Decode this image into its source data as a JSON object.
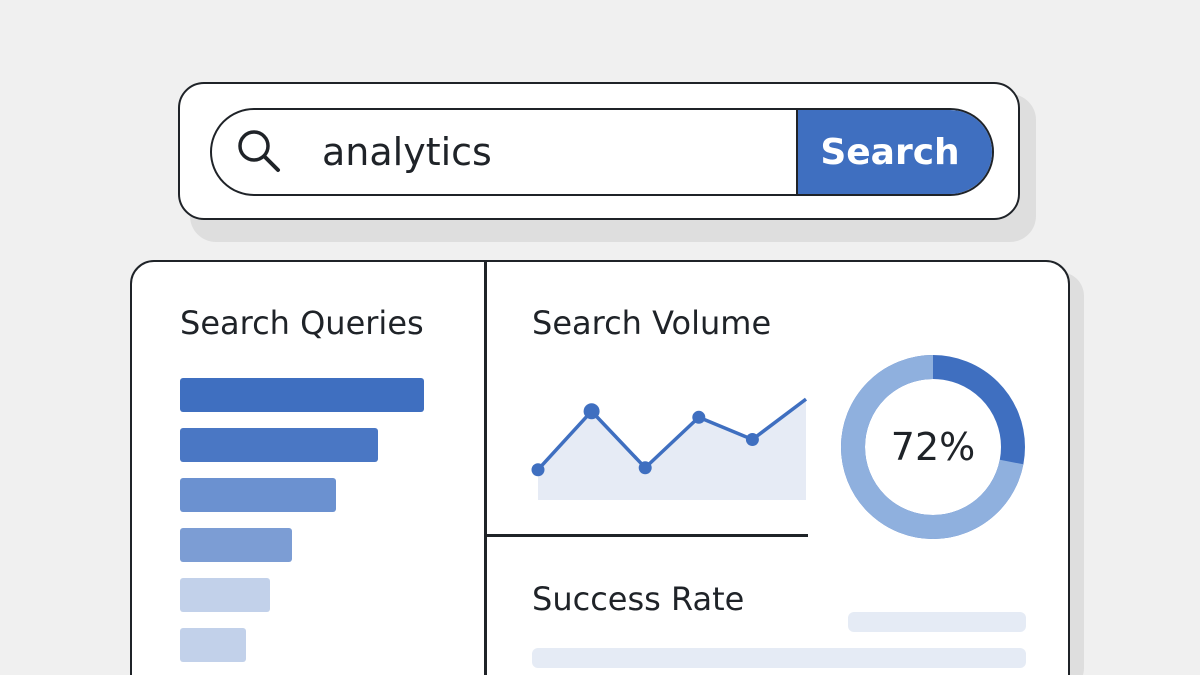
{
  "search": {
    "query": "analytics",
    "button_label": "Search",
    "icon": "search-icon"
  },
  "queries_card": {
    "title": "Search Queries",
    "bars": [
      {
        "value": 1.0,
        "color": "#3f6fc0"
      },
      {
        "value": 0.81,
        "color": "#4a77c4"
      },
      {
        "value": 0.64,
        "color": "#6b91d0"
      },
      {
        "value": 0.46,
        "color": "#7c9dd4"
      },
      {
        "value": 0.37,
        "color": "#c2d1ea"
      },
      {
        "value": 0.27,
        "color": "#c2d1ea"
      }
    ]
  },
  "volume_card": {
    "title": "Search Volume",
    "chart_data": {
      "type": "line",
      "x": [
        0,
        1,
        2,
        3,
        4,
        5
      ],
      "values": [
        30,
        88,
        32,
        82,
        60,
        100
      ],
      "markers": [
        true,
        true,
        true,
        true,
        true,
        false
      ],
      "ylim": [
        0,
        115
      ],
      "grid": false,
      "line_color": "#3f6fc0",
      "fill_color": "#e6ebf5"
    },
    "donut": {
      "value": 0.72,
      "label": "72%",
      "filled_color": "#8fb0de",
      "remaining_color": "#3f6fc0"
    }
  },
  "success_card": {
    "title": "Success Rate"
  },
  "colors": {
    "accent": "#3f6fc0",
    "border": "#1f2328",
    "background": "#f0f0f0"
  }
}
